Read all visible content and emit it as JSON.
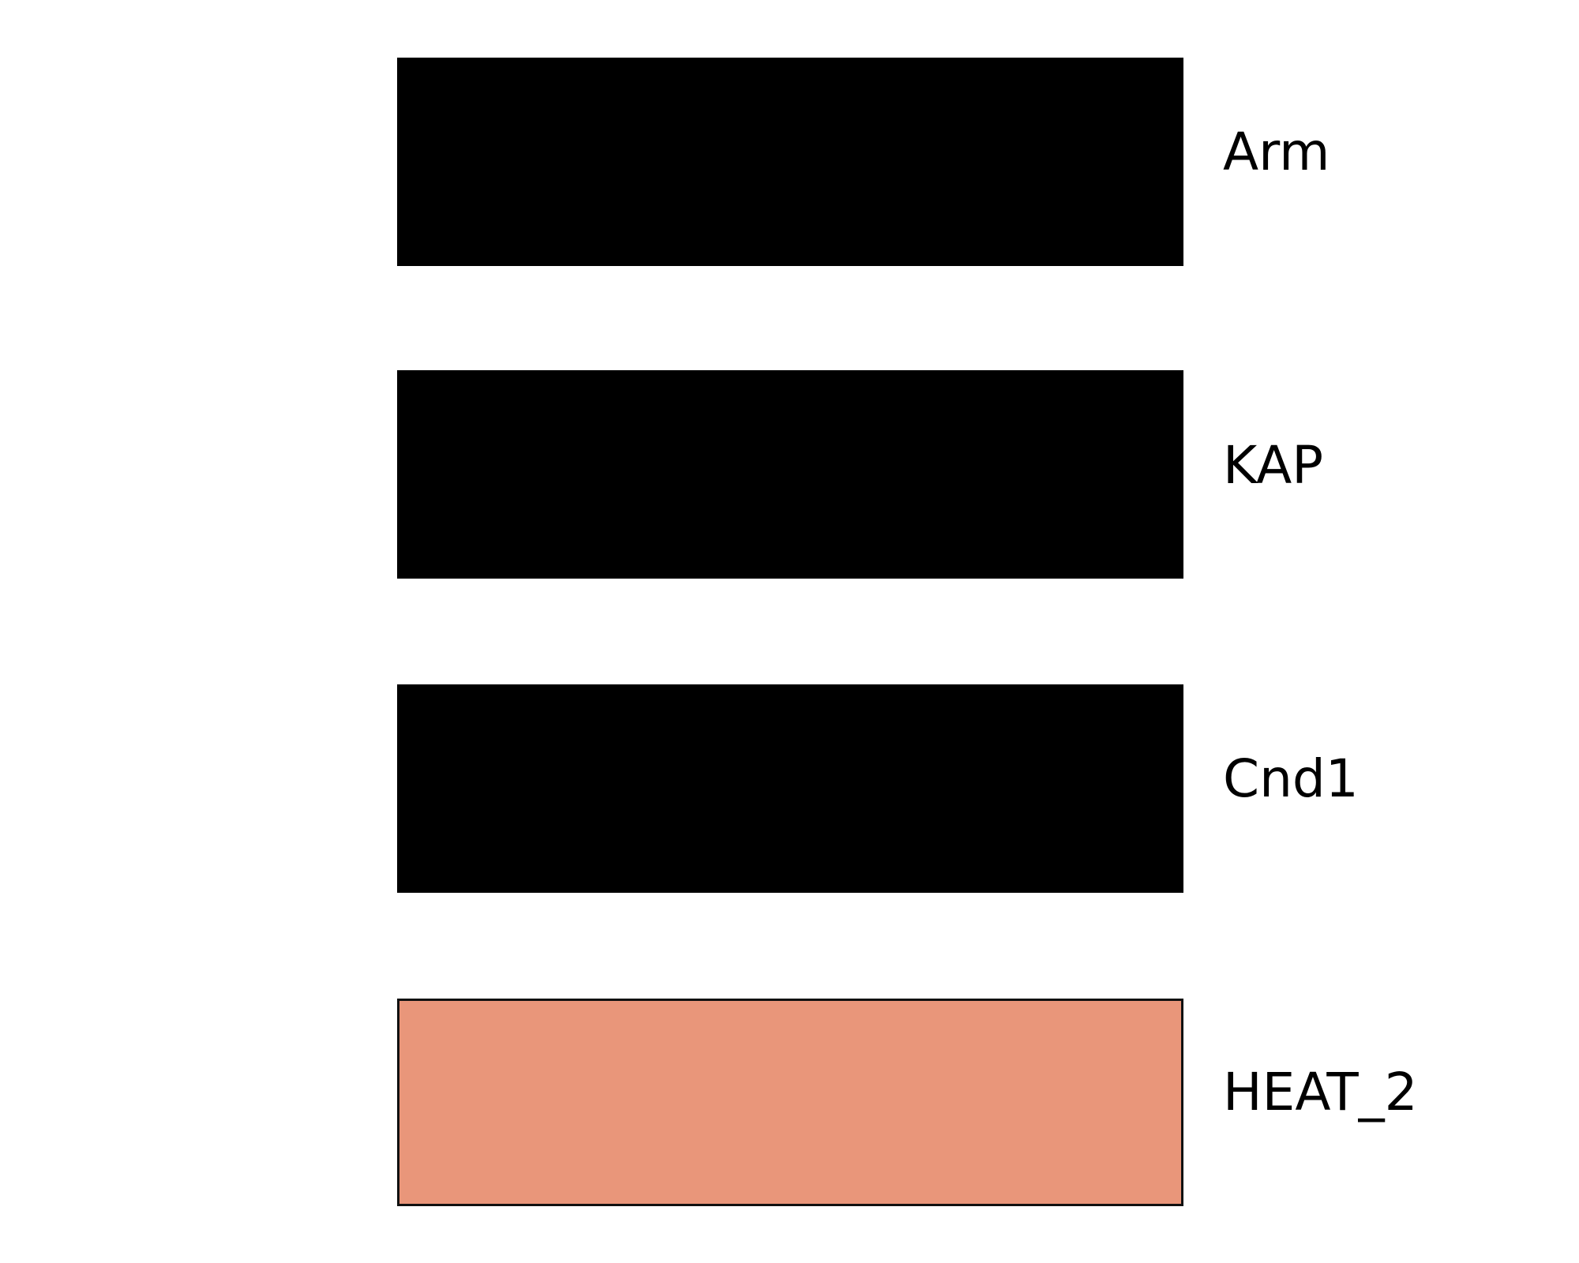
{
  "legend": {
    "items": [
      {
        "label": "Arm",
        "color": "#000000"
      },
      {
        "label": "KAP",
        "color": "#000000"
      },
      {
        "label": "Cnd1",
        "color": "#000000"
      },
      {
        "label": "HEAT_2",
        "color": "#E9967A",
        "border": "#111111"
      }
    ]
  }
}
